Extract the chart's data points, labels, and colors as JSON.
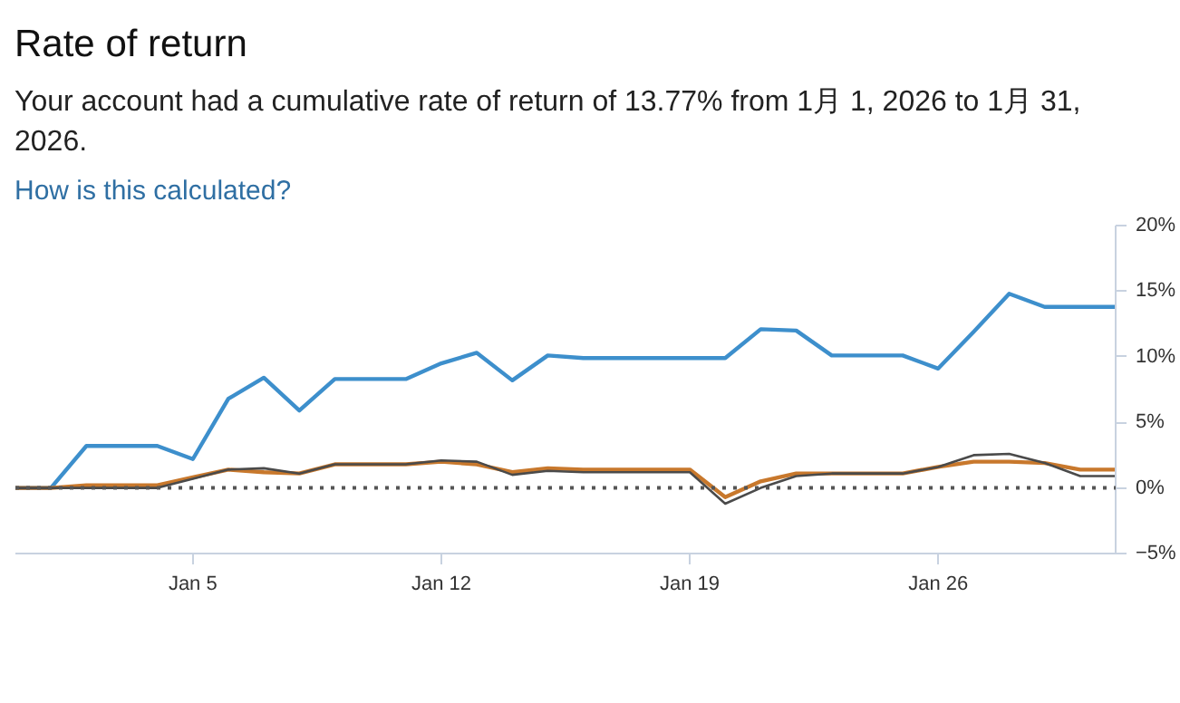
{
  "chart_data": {
    "type": "line",
    "title": "Rate of return",
    "subtitle": "Your account had a cumulative rate of return of 13.77% from 1月 1, 2026 to 1月 31, 2026.",
    "annotations": [
      "How is this calculated?"
    ],
    "x": [
      "2025-12-31",
      "2026-01-01",
      "2026-01-02",
      "2026-01-03",
      "2026-01-04",
      "2026-01-05",
      "2026-01-06",
      "2026-01-07",
      "2026-01-08",
      "2026-01-09",
      "2026-01-10",
      "2026-01-11",
      "2026-01-12",
      "2026-01-13",
      "2026-01-14",
      "2026-01-15",
      "2026-01-16",
      "2026-01-17",
      "2026-01-18",
      "2026-01-19",
      "2026-01-20",
      "2026-01-21",
      "2026-01-22",
      "2026-01-23",
      "2026-01-24",
      "2026-01-25",
      "2026-01-26",
      "2026-01-27",
      "2026-01-28",
      "2026-01-29",
      "2026-01-30",
      "2026-01-31"
    ],
    "series": [
      {
        "color": "#3d8fcc",
        "values": [
          0,
          0,
          3.2,
          3.2,
          3.2,
          2.2,
          6.8,
          8.4,
          5.9,
          8.3,
          8.3,
          8.3,
          9.5,
          10.3,
          8.2,
          10.1,
          9.9,
          9.9,
          9.9,
          9.9,
          9.9,
          12.1,
          12.0,
          10.1,
          10.1,
          10.1,
          9.1,
          11.9,
          14.8,
          13.8,
          13.8,
          13.8
        ]
      },
      {
        "color": "#c8782c",
        "values": [
          0,
          0,
          0.2,
          0.2,
          0.2,
          0.8,
          1.4,
          1.2,
          1.1,
          1.8,
          1.8,
          1.8,
          2.0,
          1.8,
          1.2,
          1.5,
          1.4,
          1.4,
          1.4,
          1.4,
          -0.7,
          0.5,
          1.1,
          1.1,
          1.1,
          1.1,
          1.6,
          2.0,
          2.0,
          1.9,
          1.4,
          1.4
        ]
      },
      {
        "color": "#4a4a4a",
        "values": [
          0,
          0,
          0,
          0,
          0,
          0.7,
          1.4,
          1.5,
          1.1,
          1.8,
          1.8,
          1.8,
          2.1,
          2.0,
          1.0,
          1.3,
          1.2,
          1.2,
          1.2,
          1.2,
          -1.2,
          0,
          0.9,
          1.1,
          1.1,
          1.1,
          1.6,
          2.5,
          2.6,
          1.9,
          0.9,
          0.9
        ]
      }
    ],
    "xlim": [
      "2025-12-31",
      "2026-01-31"
    ],
    "xticks": [
      {
        "value": "2026-01-05",
        "label": "Jan 5"
      },
      {
        "value": "2026-01-12",
        "label": "Jan 12"
      },
      {
        "value": "2026-01-19",
        "label": "Jan 19"
      },
      {
        "value": "2026-01-26",
        "label": "Jan 26"
      }
    ],
    "ylim": [
      -5,
      20
    ],
    "yticks": [
      {
        "value": -5,
        "label": "−5%"
      },
      {
        "value": 0,
        "label": "0%"
      },
      {
        "value": 5,
        "label": "5%"
      },
      {
        "value": 10,
        "label": "10%"
      },
      {
        "value": 15,
        "label": "15%"
      },
      {
        "value": 20,
        "label": "20%"
      }
    ],
    "ref_lines": [
      {
        "axis": "y",
        "value": 0,
        "color": "#555555",
        "line_style": "dotted"
      }
    ],
    "grid": false,
    "marker": "none",
    "line_style": "solid"
  }
}
